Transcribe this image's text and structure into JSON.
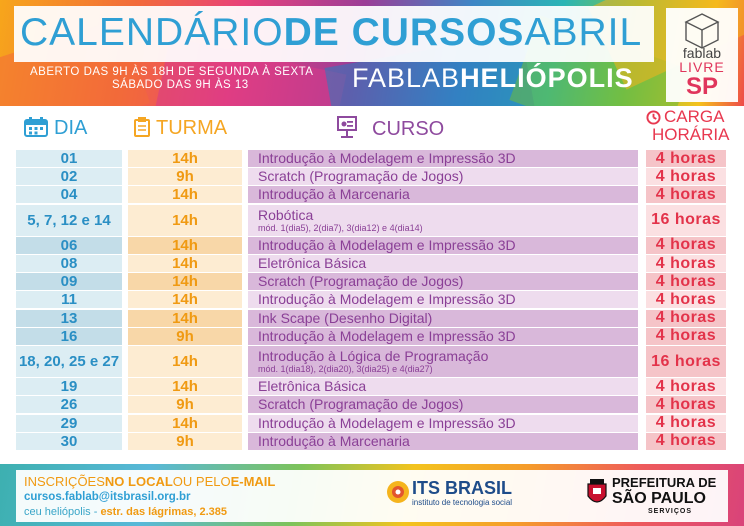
{
  "header": {
    "title_light_1": "CALENDÁRIO",
    "title_bold": "DE CURSOS",
    "title_light_2": "ABRIL",
    "schedule_line1": "ABERTO DAS 9H ÀS 18H DE SEGUNDA À SEXTA",
    "schedule_line2": "SÁBADO DAS 9H ÀS 13",
    "location_light": "FABLAB",
    "location_bold": "HELIÓPOLIS",
    "logo_fab": "fablab",
    "logo_livre": "LIVRE",
    "logo_sp": "SP"
  },
  "columns": {
    "dia": "DIA",
    "turma": "TURMA",
    "curso": "CURSO",
    "carga_1": "CARGA",
    "carga_2": "HORÁRIA"
  },
  "rows": [
    {
      "dia": "01",
      "turma": "14h",
      "curso": "Introdução à Modelagem e Impressão 3D",
      "sub": "",
      "carga": "4 horas"
    },
    {
      "dia": "02",
      "turma": "9h",
      "curso": "Scratch (Programação de Jogos)",
      "sub": "",
      "carga": "4 horas"
    },
    {
      "dia": "04",
      "turma": "14h",
      "curso": "Introdução à Marcenaria",
      "sub": "",
      "carga": "4 horas"
    },
    {
      "dia": "5, 7, 12 e 14",
      "turma": "14h",
      "curso": "Robótica",
      "sub": "mód. 1(dia5), 2(dia7), 3(dia12) e 4(dia14)",
      "carga": "16 horas"
    },
    {
      "dia": "06",
      "turma": "14h",
      "curso": "Introdução à Modelagem e Impressão 3D",
      "sub": "",
      "carga": "4 horas"
    },
    {
      "dia": "08",
      "turma": "14h",
      "curso": "Eletrônica Básica",
      "sub": "",
      "carga": "4 horas"
    },
    {
      "dia": "09",
      "turma": "14h",
      "curso": "Scratch (Programação de Jogos)",
      "sub": "",
      "carga": "4 horas"
    },
    {
      "dia": "11",
      "turma": "14h",
      "curso": "Introdução à Modelagem e Impressão 3D",
      "sub": "",
      "carga": "4 horas"
    },
    {
      "dia": "13",
      "turma": "14h",
      "curso": "Ink Scape (Desenho Digital)",
      "sub": "",
      "carga": "4 horas"
    },
    {
      "dia": "16",
      "turma": "9h",
      "curso": "Introdução à Modelagem e Impressão 3D",
      "sub": "",
      "carga": "4 horas"
    },
    {
      "dia": "18, 20, 25 e 27",
      "turma": "14h",
      "curso": "Introdução à Lógica de Programação",
      "sub": "mód. 1(dia18), 2(dia20), 3(dia25) e 4(dia27)",
      "carga": "16 horas"
    },
    {
      "dia": "19",
      "turma": "14h",
      "curso": "Eletrônica Básica",
      "sub": "",
      "carga": "4 horas"
    },
    {
      "dia": "26",
      "turma": "9h",
      "curso": "Scratch (Programação de Jogos)",
      "sub": "",
      "carga": "4 horas"
    },
    {
      "dia": "29",
      "turma": "14h",
      "curso": "Introdução à Modelagem e Impressão 3D",
      "sub": "",
      "carga": "4 horas"
    },
    {
      "dia": "30",
      "turma": "9h",
      "curso": "Introdução à Marcenaria",
      "sub": "",
      "carga": "4 horas"
    }
  ],
  "footer": {
    "insc_light_1": "INSCRIÇÕES",
    "insc_bold_1": "NO LOCAL",
    "insc_light_2": "OU PELO",
    "insc_bold_2": "E-MAIL",
    "email": "cursos.fablab@itsbrasil.org.br",
    "addr_light": "ceu heliópolis - ",
    "addr_bold": "estr. das lágrimas, 2.385",
    "its_name": "ITS BRASIL",
    "its_sub": "instituto de tecnologia social",
    "pref_1": "PREFEITURA DE",
    "pref_2": "SÃO PAULO",
    "pref_3": "SERVIÇOS"
  },
  "colors": {
    "blue": "#2f9fd4",
    "orange": "#f09a12",
    "purple": "#8a3f96",
    "red": "#e3334a",
    "dia_bg": [
      "#dcedf3",
      "#c3dde8"
    ],
    "turma_bg": [
      "#fdecd2",
      "#f8d7a8"
    ],
    "curso_bg": [
      "#eedcee",
      "#d9b8da"
    ],
    "carga_bg": [
      "#fbe0e2",
      "#f5c4c8"
    ]
  },
  "icons": [
    "calendar-icon",
    "clipboard-icon",
    "presentation-icon",
    "clock-icon",
    "fablab-box-icon",
    "its-brasil-logo",
    "sao-paulo-crest"
  ]
}
